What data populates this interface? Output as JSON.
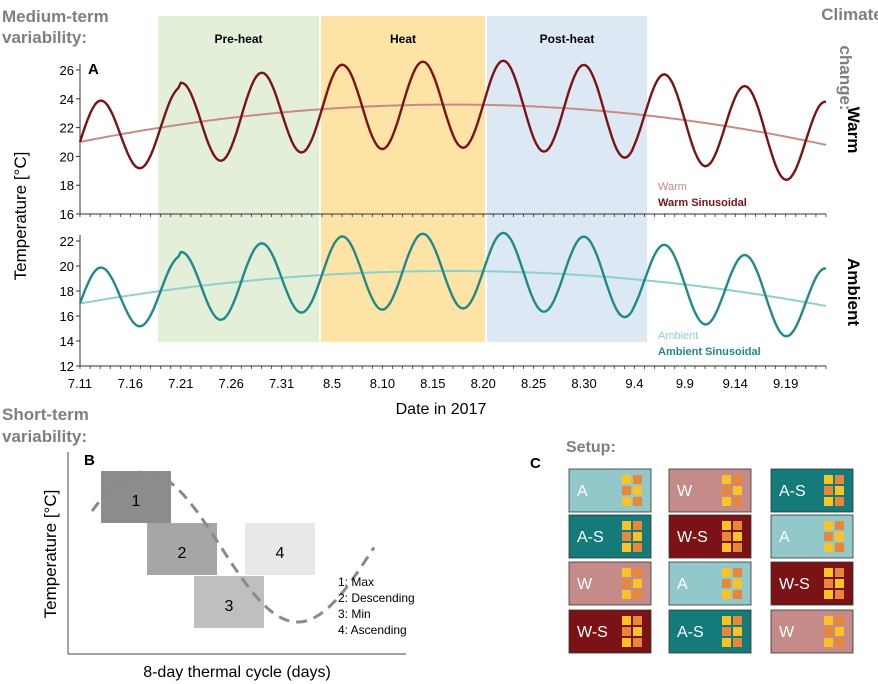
{
  "labels": {
    "medium_term": [
      "Medium-term",
      "variability:"
    ],
    "short_term": [
      "Short-term",
      "variability:"
    ],
    "climate_change": [
      "Climate",
      "change:"
    ],
    "setup": "Setup:"
  },
  "colors": {
    "warm_sinusoidal": "#7b1215",
    "warm": "#c98a86",
    "ambient_sinusoidal": "#1f8a89",
    "ambient": "#8fcfcc",
    "preheat": "#e3efd9",
    "heat": "#fde4a6",
    "postheat": "#dce8f4",
    "box1": "#8c8c8c",
    "box2": "#a6a6a6",
    "box3": "#bfbfbf",
    "box4": "#e8e8e8",
    "tank_A": "#92c8c9",
    "tank_AS": "#157a7a",
    "tank_W": "#c48b88",
    "tank_WS": "#7b1215",
    "tank_square_yellow": "#f8c323",
    "tank_square_orange": "#e8873a"
  },
  "chart_data": [
    {
      "type": "line",
      "panel": "A",
      "xlabel": "Date in 2017",
      "ylabel": "Temperature [°C]",
      "x_ticks": [
        "7.11",
        "7.16",
        "7.21",
        "7.26",
        "7.31",
        "8.5",
        "8.10",
        "8.15",
        "8.20",
        "8.25",
        "8.30",
        "9.4",
        "9.9",
        "9.14",
        "9.19"
      ],
      "phases": [
        {
          "label": "Pre-heat",
          "from": "7.20",
          "to": "8.4"
        },
        {
          "label": "Heat",
          "from": "8.4",
          "to": "8.20"
        },
        {
          "label": "Post-heat",
          "from": "8.20",
          "to": "9.4"
        }
      ],
      "subplots": [
        {
          "name": "Warm",
          "ylim": [
            16,
            26
          ],
          "y_ticks": [
            16,
            18,
            20,
            22,
            24,
            26
          ],
          "series": [
            {
              "name": "Warm",
              "kind": "trend",
              "start": 21,
              "peak": 23.6,
              "end": 20.8
            },
            {
              "name": "Warm Sinusoidal",
              "kind": "sinusoid",
              "period_days": 8,
              "amplitude_profile": [
                3.0,
                2.8,
                2.8,
                3.0,
                3.0,
                3.0,
                3.0,
                3.0,
                3.0,
                3.0,
                2.8
              ]
            }
          ]
        },
        {
          "name": "Ambient",
          "ylim": [
            12,
            22
          ],
          "y_ticks": [
            12,
            14,
            16,
            18,
            20,
            22
          ],
          "series": [
            {
              "name": "Ambient",
              "kind": "trend",
              "start": 17,
              "peak": 19.6,
              "end": 16.8
            },
            {
              "name": "Ambient Sinusoidal",
              "kind": "sinusoid",
              "period_days": 8
            }
          ]
        }
      ]
    },
    {
      "type": "diagram",
      "panel": "B",
      "xlabel": "8-day thermal cycle (days)",
      "ylabel": "Temperature [°C]",
      "boxes": [
        "1",
        "2",
        "3",
        "4"
      ],
      "legend": [
        "1: Max",
        "2: Descending",
        "3: Min",
        "4: Ascending"
      ]
    },
    {
      "type": "table",
      "panel": "C",
      "rows": [
        [
          "A",
          "W",
          "A-S"
        ],
        [
          "A-S",
          "W-S",
          "A"
        ],
        [
          "W",
          "A",
          "W-S"
        ],
        [
          "W-S",
          "A-S",
          "W"
        ]
      ]
    }
  ]
}
